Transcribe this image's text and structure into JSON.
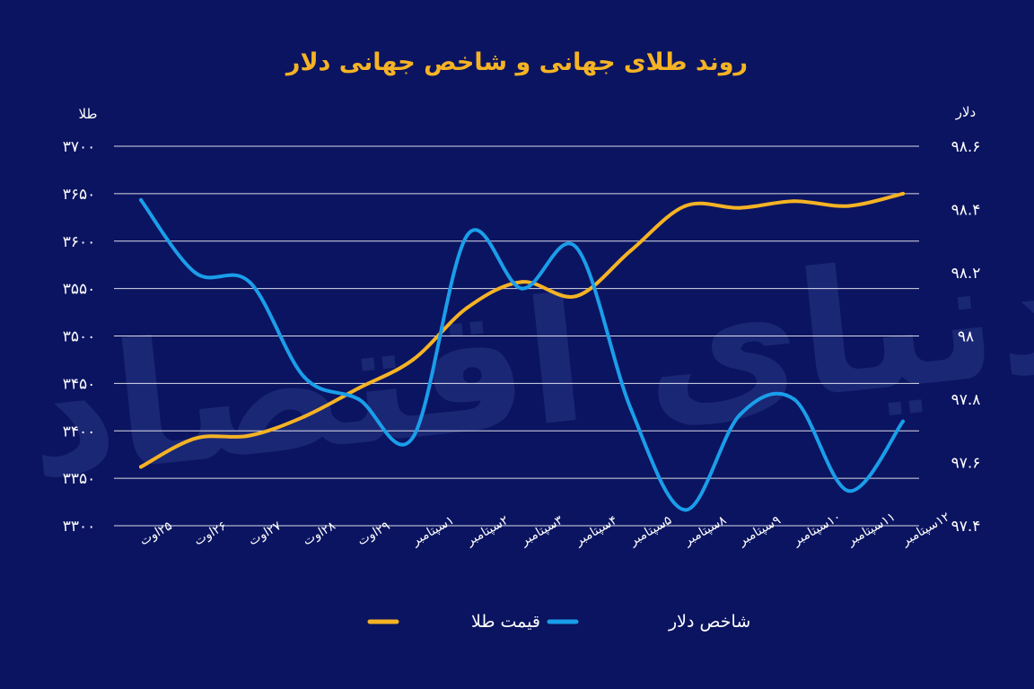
{
  "chart_data": {
    "type": "line",
    "title": "روند طلای جهانی و شاخص جهانی دلار",
    "watermark": "دنیای اقتصاد",
    "left_axis_label": "طلا",
    "right_axis_label": "دلار",
    "categories": [
      "۲۵اوت",
      "۲۶اوت",
      "۲۷اوت",
      "۲۸اوت",
      "۲۹اوت",
      "۱سپتامبر",
      "۲سپتامبر",
      "۳سپتامبر",
      "۴سپتامبر",
      "۵سپتامبر",
      "۸سپتامبر",
      "۹سپتامبر",
      "۱۰سپتامبر",
      "۱۱سپتامبر",
      "۱۲سپتامبر"
    ],
    "ylim_left": [
      3300,
      3700
    ],
    "ylim_right": [
      97.4,
      98.6
    ],
    "yticks_left": [
      "۳۳۰۰",
      "۳۳۵۰",
      "۳۴۰۰",
      "۳۴۵۰",
      "۳۵۰۰",
      "۳۵۵۰",
      "۳۶۰۰",
      "۳۶۵۰",
      "۳۷۰۰"
    ],
    "yticks_right": [
      "۹۷.۴",
      "۹۷.۶",
      "۹۷.۸",
      "۹۸",
      "۹۸.۲",
      "۹۸.۴",
      "۹۸.۶"
    ],
    "grid": true,
    "legend_position": "bottom-center",
    "series": [
      {
        "name": "قیمت طلا",
        "axis": "left",
        "color": "#f5b324",
        "values": [
          3362,
          3392,
          3395,
          3415,
          3445,
          3475,
          3530,
          3557,
          3542,
          3590,
          3637,
          3635,
          3642,
          3637,
          3650
        ]
      },
      {
        "name": "شاخص دلار",
        "axis": "right",
        "color": "#1a9eea",
        "values": [
          98.43,
          98.2,
          98.17,
          97.87,
          97.8,
          97.68,
          98.32,
          98.15,
          98.28,
          97.77,
          97.45,
          97.75,
          97.8,
          97.51,
          97.73
        ]
      }
    ]
  }
}
